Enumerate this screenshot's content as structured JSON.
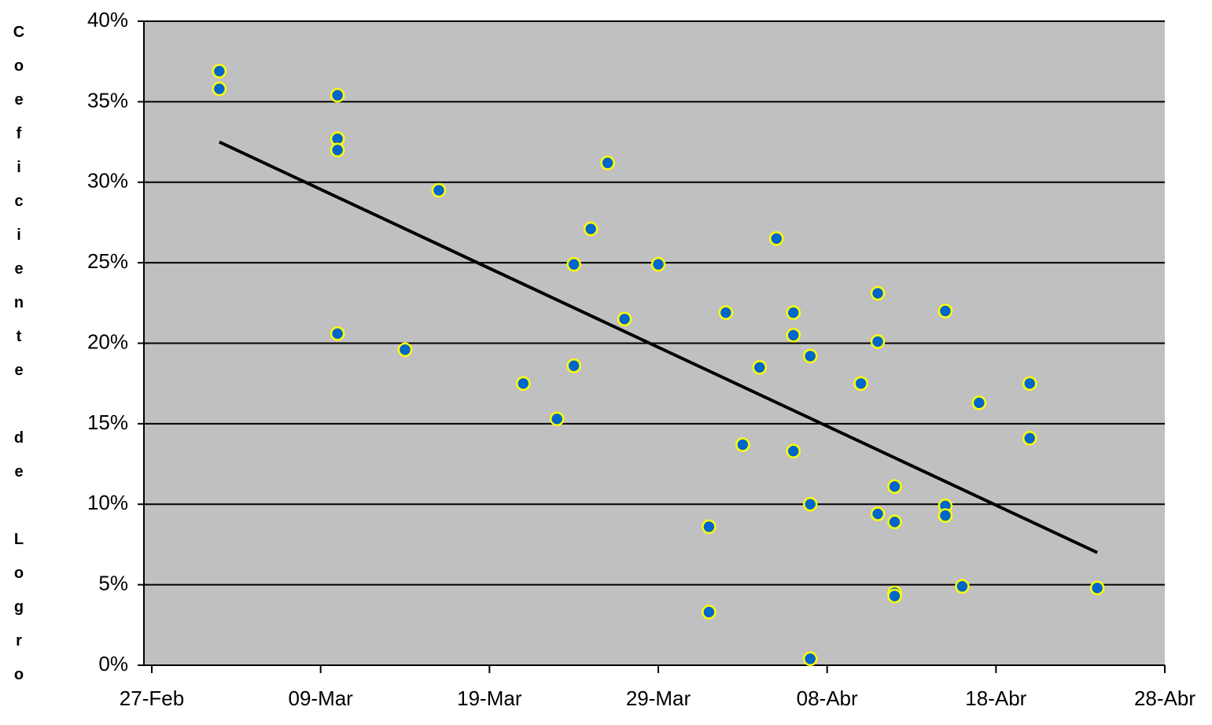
{
  "chart_data": {
    "type": "scatter",
    "y_label": "Coeficiente de Logro",
    "xlim": [
      58,
      118
    ],
    "xticks": [
      {
        "value": 58,
        "label": "27-Feb"
      },
      {
        "value": 68,
        "label": "09-Mar"
      },
      {
        "value": 78,
        "label": "19-Mar"
      },
      {
        "value": 88,
        "label": "29-Mar"
      },
      {
        "value": 98,
        "label": "08-Abr"
      },
      {
        "value": 108,
        "label": "18-Abr"
      },
      {
        "value": 118,
        "label": "28-Abr"
      }
    ],
    "ylim": [
      0,
      40
    ],
    "yticks": [
      {
        "value": 0,
        "label": "0%"
      },
      {
        "value": 5,
        "label": "5%"
      },
      {
        "value": 10,
        "label": "10%"
      },
      {
        "value": 15,
        "label": "15%"
      },
      {
        "value": 20,
        "label": "20%"
      },
      {
        "value": 25,
        "label": "25%"
      },
      {
        "value": 30,
        "label": "30%"
      },
      {
        "value": 35,
        "label": "35%"
      },
      {
        "value": 40,
        "label": "40%"
      }
    ],
    "grid": true,
    "series": [
      {
        "color": "#0066cc",
        "edge_color": "#ffff00",
        "x": [
          62,
          62,
          69,
          69,
          69,
          69,
          73,
          75,
          80,
          82,
          83,
          83,
          84,
          85,
          86,
          88,
          91,
          91,
          92,
          93,
          94,
          95,
          96,
          96,
          96,
          97,
          97,
          97,
          100,
          101,
          101,
          101,
          102,
          102,
          102,
          102,
          105,
          105,
          105,
          106,
          107,
          110,
          110,
          114
        ],
        "values": [
          36.9,
          35.8,
          35.4,
          32.7,
          32.0,
          20.6,
          19.6,
          29.5,
          17.5,
          15.3,
          24.9,
          18.6,
          27.1,
          31.2,
          21.5,
          24.9,
          8.6,
          3.3,
          21.9,
          13.7,
          18.5,
          26.5,
          21.9,
          20.5,
          13.3,
          19.2,
          10.0,
          0.4,
          17.5,
          23.1,
          20.1,
          9.4,
          11.1,
          8.9,
          4.5,
          4.3,
          22.0,
          9.9,
          9.3,
          4.9,
          16.3,
          17.5,
          14.1,
          4.8
        ]
      }
    ],
    "trend": {
      "color": "#000000",
      "x": [
        62,
        114
      ],
      "values": [
        32.5,
        7.0
      ]
    }
  }
}
